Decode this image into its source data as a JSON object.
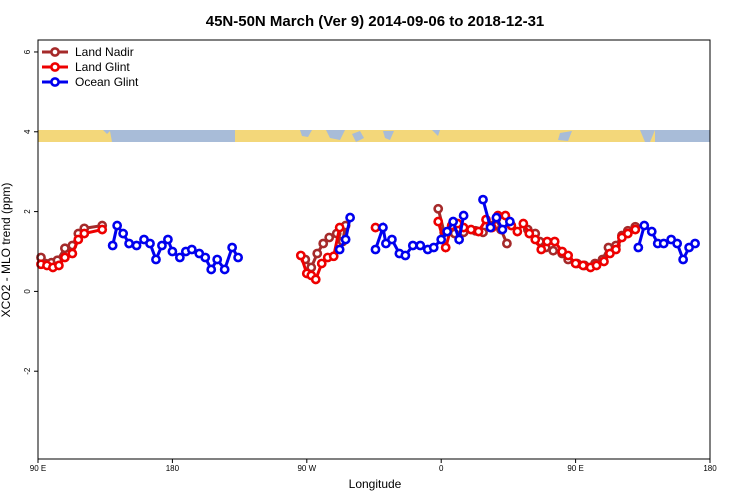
{
  "chart_data": {
    "type": "line",
    "title": "45N-50N March (Ver 9)   2014-09-06 to 2018-12-31",
    "xlabel": "Longitude",
    "ylabel": "XCO2 - MLO trend (ppm)",
    "xlim": [
      90,
      540
    ],
    "ylim": [
      -4.2,
      6.3
    ],
    "x_ticks": [
      {
        "value": 90,
        "label": "90 E"
      },
      {
        "value": 180,
        "label": "180"
      },
      {
        "value": 270,
        "label": "90 W"
      },
      {
        "value": 360,
        "label": "0"
      },
      {
        "value": 450,
        "label": "90 E"
      },
      {
        "value": 540,
        "label": "180"
      }
    ],
    "y_ticks": [
      {
        "value": -2,
        "label": "-2"
      },
      {
        "value": 0,
        "label": "0"
      },
      {
        "value": 2,
        "label": "2"
      },
      {
        "value": 4,
        "label": "4"
      },
      {
        "value": 6,
        "label": "6"
      }
    ],
    "legend_position": "top-left",
    "series": [
      {
        "name": "Land Nadir",
        "color": "#a52a2a",
        "segments": [
          [
            [
              92,
              0.85
            ],
            [
              95,
              0.7
            ],
            [
              99,
              0.72
            ],
            [
              103,
              0.78
            ],
            [
              108,
              1.08
            ],
            [
              113,
              1.15
            ],
            [
              117,
              1.45
            ],
            [
              121,
              1.58
            ],
            [
              133,
              1.65
            ]
          ],
          [
            [
              269,
              0.8
            ],
            [
              273,
              0.6
            ],
            [
              277,
              0.95
            ],
            [
              281,
              1.2
            ],
            [
              285,
              1.35
            ],
            [
              290,
              1.45
            ],
            [
              294,
              1.25
            ],
            [
              296,
              1.65
            ]
          ],
          [
            [
              358,
              2.07
            ],
            [
              362,
              1.48
            ],
            [
              369,
              1.45
            ],
            [
              375,
              1.48
            ],
            [
              383,
              1.52
            ],
            [
              388,
              1.48
            ],
            [
              393,
              1.65
            ],
            [
              397,
              1.82
            ],
            [
              400,
              1.55
            ],
            [
              404,
              1.2
            ]
          ],
          [
            [
              418,
              1.55
            ],
            [
              423,
              1.45
            ],
            [
              426,
              1.25
            ],
            [
              430,
              1.1
            ],
            [
              435,
              1.02
            ],
            [
              441,
              0.95
            ],
            [
              445,
              0.8
            ],
            [
              451,
              0.7
            ],
            [
              456,
              0.65
            ],
            [
              463,
              0.7
            ],
            [
              468,
              0.8
            ],
            [
              472,
              1.1
            ],
            [
              477,
              1.15
            ],
            [
              481,
              1.4
            ],
            [
              485,
              1.52
            ],
            [
              490,
              1.62
            ]
          ]
        ]
      },
      {
        "name": "Land Glint",
        "color": "#ee0000",
        "segments": [
          [
            [
              92,
              0.68
            ],
            [
              96,
              0.65
            ],
            [
              100,
              0.6
            ],
            [
              104,
              0.65
            ],
            [
              108,
              0.85
            ],
            [
              113,
              0.95
            ],
            [
              117,
              1.3
            ],
            [
              121,
              1.45
            ],
            [
              133,
              1.55
            ]
          ],
          [
            [
              266,
              0.9
            ],
            [
              270,
              0.45
            ],
            [
              273,
              0.4
            ],
            [
              276,
              0.3
            ],
            [
              280,
              0.7
            ],
            [
              284,
              0.85
            ],
            [
              288,
              0.88
            ],
            [
              292,
              1.6
            ]
          ],
          [
            [
              316,
              1.6
            ]
          ],
          [
            [
              358,
              1.75
            ],
            [
              363,
              1.1
            ],
            [
              367,
              1.65
            ],
            [
              371,
              1.7
            ],
            [
              375,
              1.6
            ],
            [
              380,
              1.55
            ],
            [
              385,
              1.5
            ],
            [
              390,
              1.8
            ],
            [
              394,
              1.6
            ],
            [
              398,
              1.9
            ],
            [
              403,
              1.9
            ],
            [
              407,
              1.65
            ],
            [
              411,
              1.5
            ],
            [
              415,
              1.7
            ],
            [
              419,
              1.45
            ],
            [
              423,
              1.3
            ],
            [
              427,
              1.05
            ],
            [
              431,
              1.25
            ],
            [
              436,
              1.25
            ],
            [
              441,
              1.0
            ],
            [
              445,
              0.9
            ],
            [
              450,
              0.7
            ],
            [
              455,
              0.65
            ],
            [
              460,
              0.6
            ],
            [
              464,
              0.65
            ],
            [
              469,
              0.75
            ],
            [
              473,
              0.95
            ],
            [
              477,
              1.05
            ],
            [
              481,
              1.35
            ],
            [
              485,
              1.45
            ],
            [
              490,
              1.55
            ]
          ]
        ]
      },
      {
        "name": "Ocean Glint",
        "color": "#0000ee",
        "segments": [
          [
            [
              140,
              1.15
            ],
            [
              143,
              1.65
            ],
            [
              147,
              1.45
            ],
            [
              151,
              1.2
            ],
            [
              156,
              1.15
            ],
            [
              161,
              1.3
            ],
            [
              165,
              1.2
            ],
            [
              169,
              0.8
            ],
            [
              173,
              1.15
            ],
            [
              177,
              1.3
            ],
            [
              180,
              1.0
            ],
            [
              185,
              0.85
            ],
            [
              189,
              1.0
            ],
            [
              193,
              1.05
            ],
            [
              198,
              0.95
            ],
            [
              202,
              0.85
            ],
            [
              206,
              0.55
            ],
            [
              210,
              0.8
            ],
            [
              215,
              0.55
            ],
            [
              220,
              1.1
            ],
            [
              224,
              0.85
            ]
          ],
          [
            [
              292,
              1.05
            ],
            [
              296,
              1.3
            ],
            [
              299,
              1.85
            ]
          ],
          [
            [
              316,
              1.05
            ],
            [
              321,
              1.6
            ],
            [
              323,
              1.2
            ],
            [
              327,
              1.3
            ],
            [
              332,
              0.95
            ],
            [
              336,
              0.9
            ],
            [
              341,
              1.15
            ],
            [
              346,
              1.15
            ],
            [
              351,
              1.05
            ],
            [
              355,
              1.1
            ],
            [
              360,
              1.3
            ],
            [
              364,
              1.5
            ],
            [
              368,
              1.75
            ],
            [
              372,
              1.3
            ],
            [
              375,
              1.9
            ]
          ],
          [
            [
              388,
              2.3
            ],
            [
              393,
              1.6
            ],
            [
              397,
              1.85
            ],
            [
              401,
              1.55
            ],
            [
              406,
              1.75
            ]
          ],
          [
            [
              492,
              1.1
            ],
            [
              496,
              1.65
            ],
            [
              501,
              1.5
            ],
            [
              505,
              1.2
            ],
            [
              509,
              1.2
            ],
            [
              514,
              1.3
            ],
            [
              518,
              1.2
            ],
            [
              522,
              0.8
            ],
            [
              526,
              1.1
            ],
            [
              530,
              1.2
            ]
          ]
        ]
      }
    ]
  }
}
